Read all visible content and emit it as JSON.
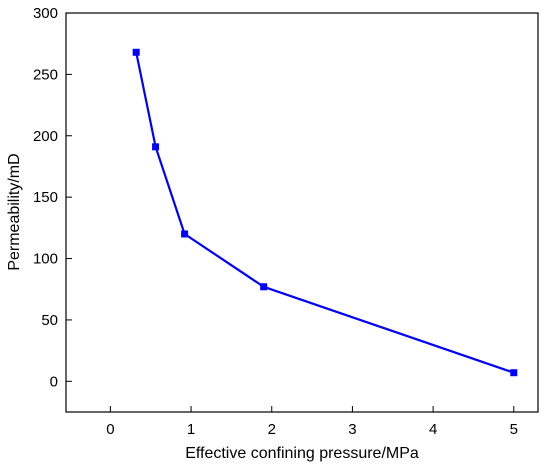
{
  "chart_data": {
    "type": "line",
    "title": "",
    "xlabel": "Effective confining pressure/MPa",
    "ylabel": "Permeability/mD",
    "xlim": [
      -0.55,
      5.3
    ],
    "ylim": [
      -25,
      300
    ],
    "x_ticks": [
      0,
      1,
      2,
      3,
      4,
      5
    ],
    "y_ticks": [
      0,
      50,
      100,
      150,
      200,
      250,
      300
    ],
    "grid": false,
    "legend": "none",
    "series": [
      {
        "color": "#0000ff",
        "marker": "square",
        "x": [
          0.32,
          0.56,
          0.92,
          1.9,
          5.0
        ],
        "y": [
          268,
          191,
          120,
          77,
          7
        ]
      }
    ]
  }
}
